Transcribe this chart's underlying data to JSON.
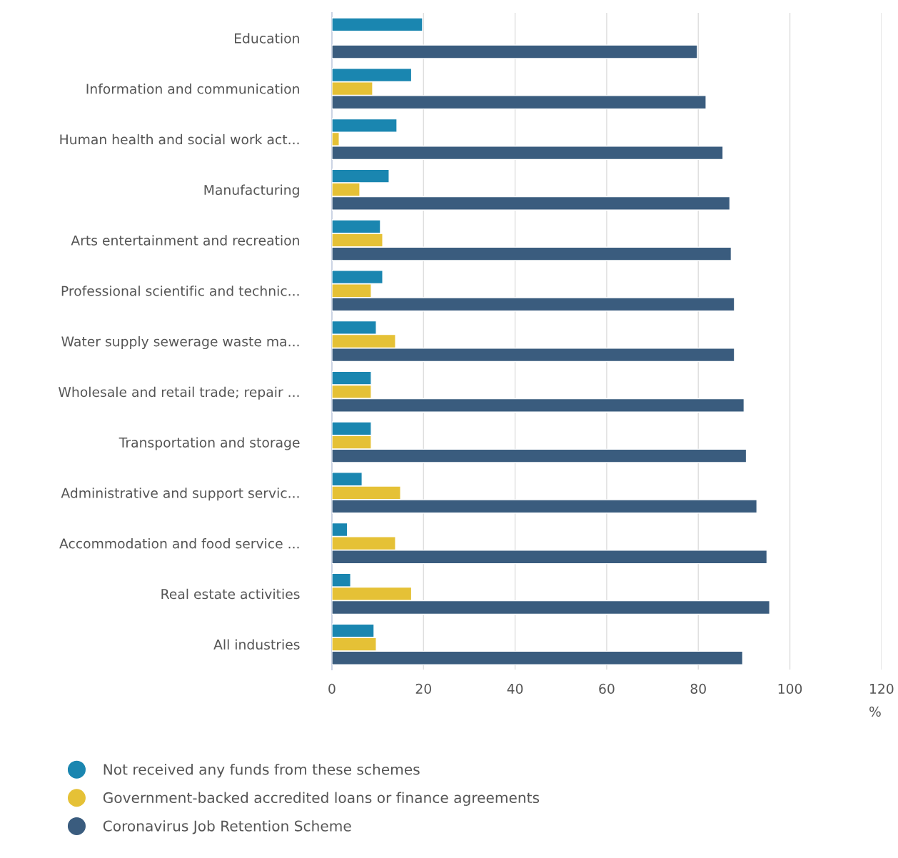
{
  "chart_data": {
    "type": "bar",
    "orientation": "horizontal",
    "xlabel": "%",
    "categories": [
      "Education",
      "Information and communication",
      "Human health and social work act...",
      "Manufacturing",
      "Arts entertainment and recreation",
      "Professional scientific and technic...",
      "Water supply sewerage waste ma...",
      "Wholesale and retail trade; repair ...",
      "Transportation and storage",
      "Administrative and support servic...",
      "Accommodation and food service ...",
      "Real estate activities",
      "All industries"
    ],
    "series": [
      {
        "name": "Not received any funds from these schemes",
        "color": "#1a86b0",
        "values": [
          19.8,
          17.4,
          14.2,
          12.5,
          10.6,
          11.1,
          9.7,
          8.6,
          8.6,
          6.6,
          3.4,
          4.1,
          9.2
        ]
      },
      {
        "name": "Government-backed accredited loans or finance agreements",
        "color": "#e5c136",
        "values": [
          null,
          8.9,
          1.6,
          6.1,
          11.1,
          8.6,
          13.9,
          8.6,
          8.6,
          15.0,
          13.9,
          17.4,
          9.7
        ]
      },
      {
        "name": "Coronavirus Job Retention Scheme",
        "color": "#3a5c7e",
        "values": [
          79.8,
          81.7,
          85.4,
          86.9,
          87.2,
          87.9,
          87.9,
          90.0,
          90.5,
          92.8,
          95.0,
          95.6,
          89.7
        ]
      }
    ],
    "xlim": [
      0,
      120
    ],
    "xticks": [
      0,
      20,
      40,
      60,
      80,
      100,
      120
    ],
    "grid": "x",
    "legend": "bottom"
  }
}
